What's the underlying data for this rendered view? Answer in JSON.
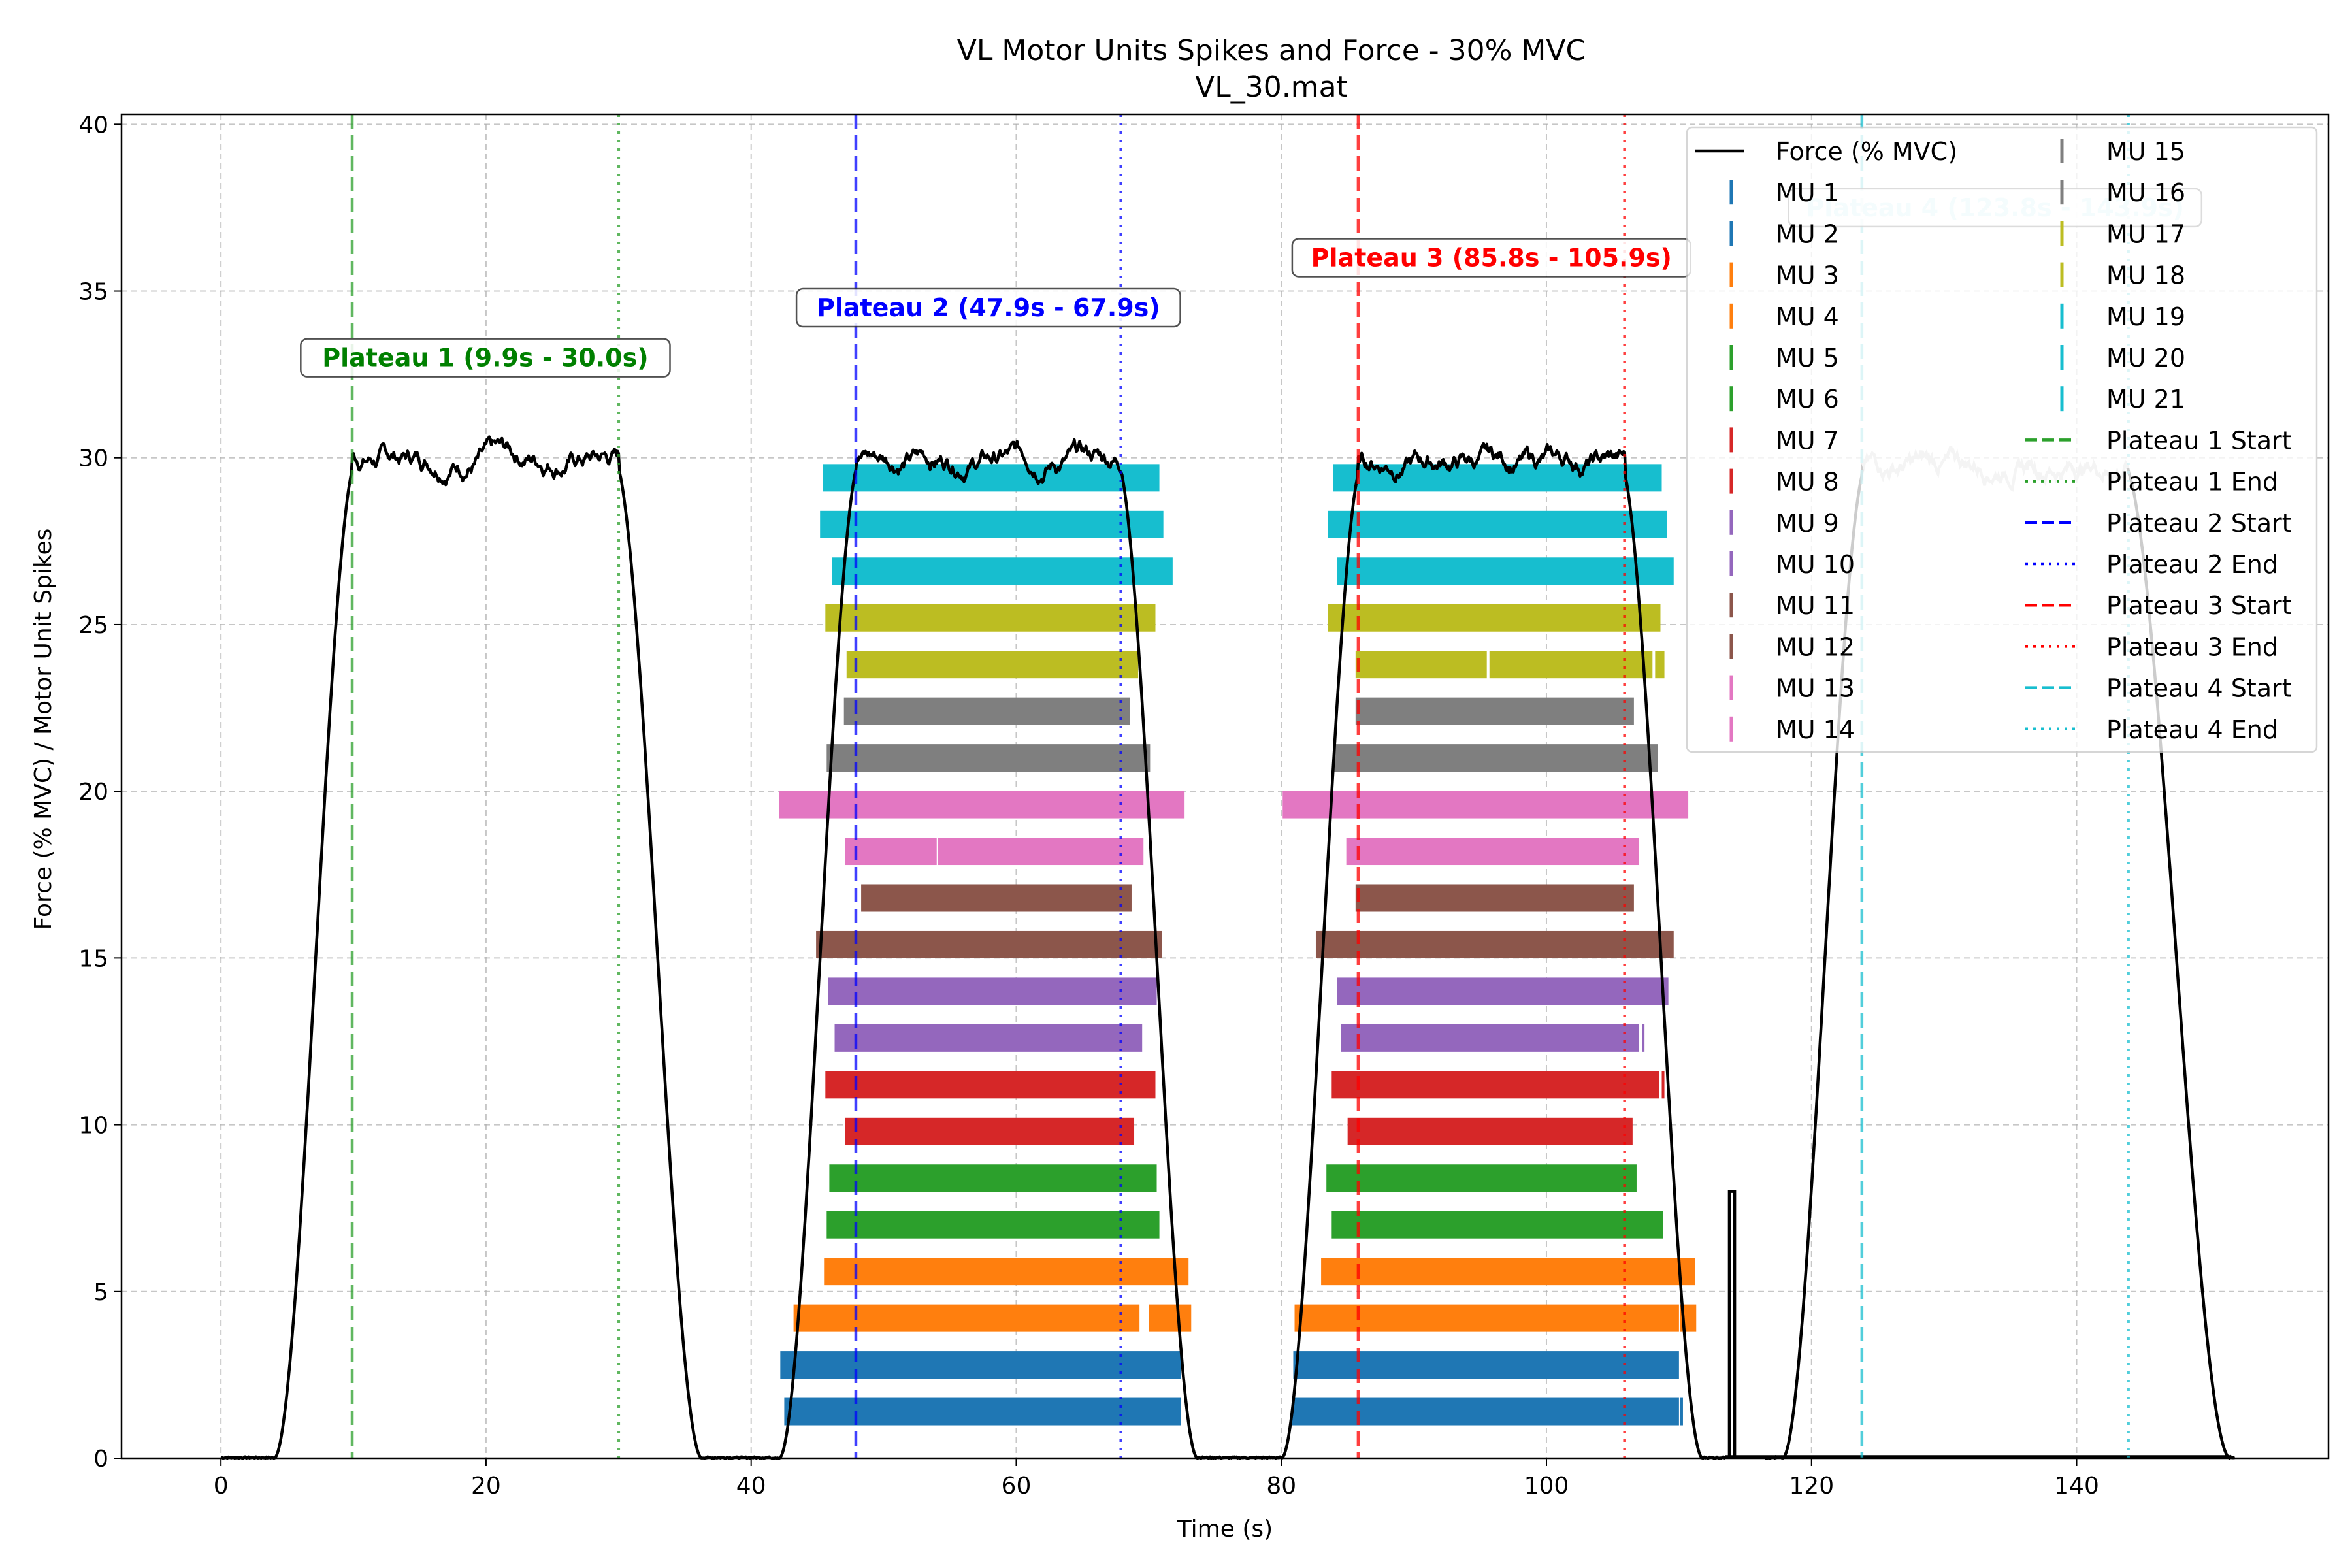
{
  "chart_data": {
    "type": "line",
    "title": "VL Motor Units Spikes and Force - 30% MVC",
    "subtitle": "VL_30.mat",
    "xlabel": "Time (s)",
    "ylabel": "Force (% MVC) / Motor Unit Spikes",
    "xlim": [
      -7.5,
      159
    ],
    "ylim": [
      0,
      40.3
    ],
    "xticks": [
      0,
      20,
      40,
      60,
      80,
      100,
      120,
      140
    ],
    "yticks": [
      0,
      5,
      10,
      15,
      20,
      25,
      30,
      35,
      40
    ],
    "grid": true,
    "legend_position": "top-right",
    "force_series": {
      "name": "Force (% MVC)",
      "color": "#000000",
      "segments": [
        {
          "t_start": 0,
          "t_end": 41.5,
          "plateau_start": 9.9,
          "plateau_end": 30.0,
          "rise_start": 4.0,
          "fall_end": 36.3,
          "level": 30.0
        },
        {
          "t_start": 41.5,
          "t_end": 79.5,
          "plateau_start": 47.9,
          "plateau_end": 67.9,
          "rise_start": 42.1,
          "fall_end": 73.7,
          "level": 30.0
        },
        {
          "t_start": 79.5,
          "t_end": 113.5,
          "plateau_start": 85.8,
          "plateau_end": 105.9,
          "rise_start": 80.0,
          "fall_end": 111.8,
          "level": 29.9
        }
      ],
      "noise_seed": 7
    },
    "ghost_series": {
      "color": "#cccccc",
      "t_start": 117.8,
      "t_end": 151.6,
      "plateau_start": 123.8,
      "plateau_end": 143.9,
      "level": 29.8
    },
    "spike_artifact": {
      "x": 114.0,
      "y_top": 8.0
    },
    "motor_units": [
      {
        "name": "MU 1",
        "color": "#1f77b4",
        "y": 1.4,
        "blocks": [
          [
            42.5,
            72.4
          ],
          [
            80.8,
            110.0
          ],
          [
            110.1,
            110.3
          ]
        ]
      },
      {
        "name": "MU 2",
        "color": "#1f77b4",
        "y": 2.8,
        "blocks": [
          [
            42.2,
            72.4
          ],
          [
            80.9,
            110.0
          ]
        ]
      },
      {
        "name": "MU 3",
        "color": "#ff7f0e",
        "y": 4.2,
        "blocks": [
          [
            43.2,
            69.3
          ],
          [
            70.0,
            73.2
          ],
          [
            81.0,
            110.0
          ],
          [
            110.1,
            111.3
          ]
        ]
      },
      {
        "name": "MU 4",
        "color": "#ff7f0e",
        "y": 5.6,
        "blocks": [
          [
            45.5,
            73.0
          ],
          [
            83.0,
            111.2
          ]
        ]
      },
      {
        "name": "MU 5",
        "color": "#2ca02c",
        "y": 7.0,
        "blocks": [
          [
            45.7,
            70.8
          ],
          [
            83.8,
            108.8
          ]
        ]
      },
      {
        "name": "MU 6",
        "color": "#2ca02c",
        "y": 8.4,
        "blocks": [
          [
            45.9,
            70.6
          ],
          [
            83.4,
            106.8
          ]
        ]
      },
      {
        "name": "MU 7",
        "color": "#d62728",
        "y": 9.8,
        "blocks": [
          [
            47.1,
            68.9
          ],
          [
            85.0,
            106.5
          ]
        ]
      },
      {
        "name": "MU 8",
        "color": "#d62728",
        "y": 11.2,
        "blocks": [
          [
            45.6,
            70.5
          ],
          [
            83.8,
            108.5
          ],
          [
            108.7,
            108.9
          ]
        ]
      },
      {
        "name": "MU 9",
        "color": "#9467bd",
        "y": 12.6,
        "blocks": [
          [
            46.3,
            69.5
          ],
          [
            84.5,
            107.0
          ],
          [
            107.2,
            107.4
          ]
        ]
      },
      {
        "name": "MU 10",
        "color": "#9467bd",
        "y": 14.0,
        "blocks": [
          [
            45.8,
            70.6
          ],
          [
            84.2,
            109.2
          ]
        ]
      },
      {
        "name": "MU 11",
        "color": "#8c564b",
        "y": 15.4,
        "blocks": [
          [
            44.9,
            71.0
          ],
          [
            82.6,
            109.6
          ]
        ]
      },
      {
        "name": "MU 12",
        "color": "#8c564b",
        "y": 16.8,
        "blocks": [
          [
            48.3,
            68.7
          ],
          [
            85.6,
            106.6
          ]
        ]
      },
      {
        "name": "MU 13",
        "color": "#e377c2",
        "y": 18.2,
        "blocks": [
          [
            47.1,
            54.0
          ],
          [
            54.1,
            69.6
          ],
          [
            84.9,
            107.0
          ]
        ]
      },
      {
        "name": "MU 14",
        "color": "#e377c2",
        "y": 19.6,
        "blocks": [
          [
            42.1,
            72.7
          ],
          [
            80.1,
            110.7
          ]
        ]
      },
      {
        "name": "MU 15",
        "color": "#7f7f7f",
        "y": 21.0,
        "blocks": [
          [
            45.7,
            70.1
          ],
          [
            84.0,
            108.4
          ]
        ]
      },
      {
        "name": "MU 16",
        "color": "#7f7f7f",
        "y": 22.4,
        "blocks": [
          [
            47.0,
            68.6
          ],
          [
            85.6,
            106.6
          ]
        ]
      },
      {
        "name": "MU 17",
        "color": "#bcbd22",
        "y": 23.8,
        "blocks": [
          [
            47.2,
            69.2
          ],
          [
            85.6,
            95.5
          ],
          [
            95.7,
            108.0
          ],
          [
            108.2,
            108.9
          ]
        ]
      },
      {
        "name": "MU 18",
        "color": "#bcbd22",
        "y": 25.2,
        "blocks": [
          [
            45.6,
            70.5
          ],
          [
            83.5,
            108.6
          ]
        ]
      },
      {
        "name": "MU 19",
        "color": "#17becf",
        "y": 26.6,
        "blocks": [
          [
            46.1,
            71.8
          ],
          [
            84.2,
            109.6
          ]
        ]
      },
      {
        "name": "MU 20",
        "color": "#17becf",
        "y": 28.0,
        "blocks": [
          [
            45.2,
            71.1
          ],
          [
            83.5,
            109.1
          ]
        ]
      },
      {
        "name": "MU 21",
        "color": "#17becf",
        "y": 29.4,
        "blocks": [
          [
            45.4,
            70.8
          ],
          [
            83.9,
            108.7
          ]
        ]
      }
    ],
    "plateaus": [
      {
        "label": "Plateau 1 (9.9s - 30.0s)",
        "start": 9.9,
        "end": 30.0,
        "color": "#2ca02c",
        "text_color": "#008000",
        "label_x": 19.95,
        "label_y": 33.0
      },
      {
        "label": "Plateau 2 (47.9s - 67.9s)",
        "start": 47.9,
        "end": 67.9,
        "color": "#0000ff",
        "text_color": "#0000ff",
        "label_x": 57.9,
        "label_y": 34.5
      },
      {
        "label": "Plateau 3 (85.8s - 105.9s)",
        "start": 85.8,
        "end": 105.9,
        "color": "#ff0000",
        "text_color": "#ff0000",
        "label_x": 95.85,
        "label_y": 36.0
      },
      {
        "label": "Plateau 4 (123.8s - 143.9s)",
        "start": 123.8,
        "end": 143.9,
        "color": "#17becf",
        "text_color": "#c9f2f6",
        "label_x": 133.85,
        "label_y": 37.5
      }
    ],
    "legend": {
      "col1": [
        {
          "label": "Force (% MVC)",
          "kind": "line",
          "color": "#000000",
          "dash": "solid"
        },
        {
          "label": "MU 1",
          "kind": "tick",
          "color": "#1f77b4"
        },
        {
          "label": "MU 2",
          "kind": "tick",
          "color": "#1f77b4"
        },
        {
          "label": "MU 3",
          "kind": "tick",
          "color": "#ff7f0e"
        },
        {
          "label": "MU 4",
          "kind": "tick",
          "color": "#ff7f0e"
        },
        {
          "label": "MU 5",
          "kind": "tick",
          "color": "#2ca02c"
        },
        {
          "label": "MU 6",
          "kind": "tick",
          "color": "#2ca02c"
        },
        {
          "label": "MU 7",
          "kind": "tick",
          "color": "#d62728"
        },
        {
          "label": "MU 8",
          "kind": "tick",
          "color": "#d62728"
        },
        {
          "label": "MU 9",
          "kind": "tick",
          "color": "#9467bd"
        },
        {
          "label": "MU 10",
          "kind": "tick",
          "color": "#9467bd"
        },
        {
          "label": "MU 11",
          "kind": "tick",
          "color": "#8c564b"
        },
        {
          "label": "MU 12",
          "kind": "tick",
          "color": "#8c564b"
        },
        {
          "label": "MU 13",
          "kind": "tick",
          "color": "#e377c2"
        },
        {
          "label": "MU 14",
          "kind": "tick",
          "color": "#e377c2"
        }
      ],
      "col2": [
        {
          "label": "MU 15",
          "kind": "tick",
          "color": "#7f7f7f"
        },
        {
          "label": "MU 16",
          "kind": "tick",
          "color": "#7f7f7f"
        },
        {
          "label": "MU 17",
          "kind": "tick",
          "color": "#bcbd22"
        },
        {
          "label": "MU 18",
          "kind": "tick",
          "color": "#bcbd22"
        },
        {
          "label": "MU 19",
          "kind": "tick",
          "color": "#17becf"
        },
        {
          "label": "MU 20",
          "kind": "tick",
          "color": "#17becf"
        },
        {
          "label": "MU 21",
          "kind": "tick",
          "color": "#17becf"
        },
        {
          "label": "Plateau 1 Start",
          "kind": "line",
          "color": "#2ca02c",
          "dash": "dashed"
        },
        {
          "label": "Plateau 1 End",
          "kind": "line",
          "color": "#2ca02c",
          "dash": "dotted"
        },
        {
          "label": "Plateau 2 Start",
          "kind": "line",
          "color": "#0000ff",
          "dash": "dashed"
        },
        {
          "label": "Plateau 2 End",
          "kind": "line",
          "color": "#0000ff",
          "dash": "dotted"
        },
        {
          "label": "Plateau 3 Start",
          "kind": "line",
          "color": "#ff0000",
          "dash": "dashed"
        },
        {
          "label": "Plateau 3 End",
          "kind": "line",
          "color": "#ff0000",
          "dash": "dotted"
        },
        {
          "label": "Plateau 4 Start",
          "kind": "line",
          "color": "#17becf",
          "dash": "dashed"
        },
        {
          "label": "Plateau 4 End",
          "kind": "line",
          "color": "#17becf",
          "dash": "dotted"
        }
      ]
    }
  }
}
